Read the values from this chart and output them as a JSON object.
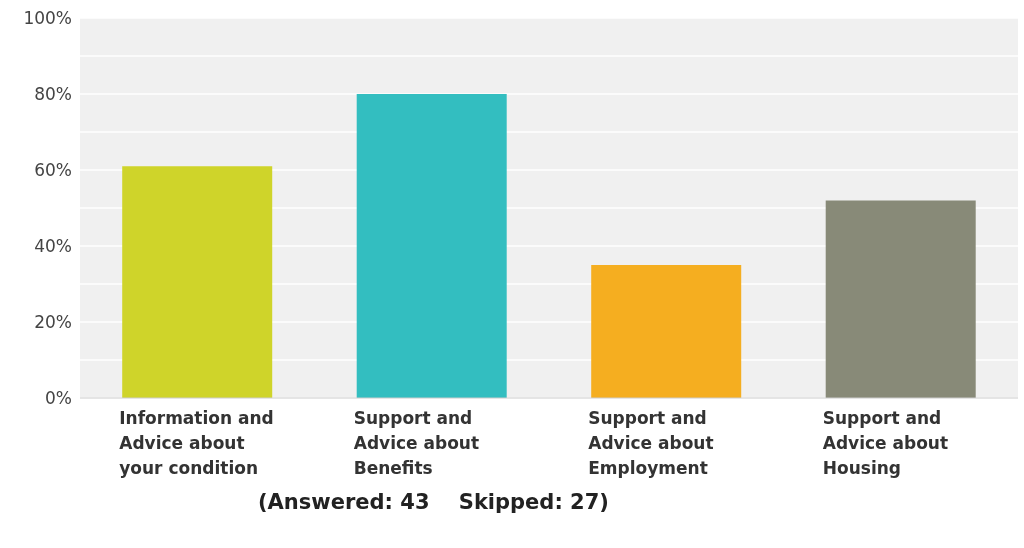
{
  "chart_data": {
    "type": "bar",
    "categories": [
      "Information and Advice about your condition",
      "Support and Advice about Benefits",
      "Support and Advice about Employment",
      "Support and Advice about Housing"
    ],
    "values": [
      61,
      80,
      35,
      52
    ],
    "colors": [
      "#cfd42a",
      "#33bec0",
      "#f5ae20",
      "#888a78"
    ],
    "ylim": [
      0,
      100
    ],
    "yticks": [
      {
        "value": 0,
        "label": "0%"
      },
      {
        "value": 10,
        "label": null
      },
      {
        "value": 20,
        "label": "20%"
      },
      {
        "value": 30,
        "label": null
      },
      {
        "value": 40,
        "label": "40%"
      },
      {
        "value": 50,
        "label": null
      },
      {
        "value": 60,
        "label": "60%"
      },
      {
        "value": 70,
        "label": null
      },
      {
        "value": 80,
        "label": "80%"
      },
      {
        "value": 90,
        "label": null
      },
      {
        "value": 100,
        "label": "100%"
      }
    ],
    "grid": "y",
    "legend": false,
    "annotations": [
      "(Answered: 43    Skipped: 27)"
    ]
  }
}
